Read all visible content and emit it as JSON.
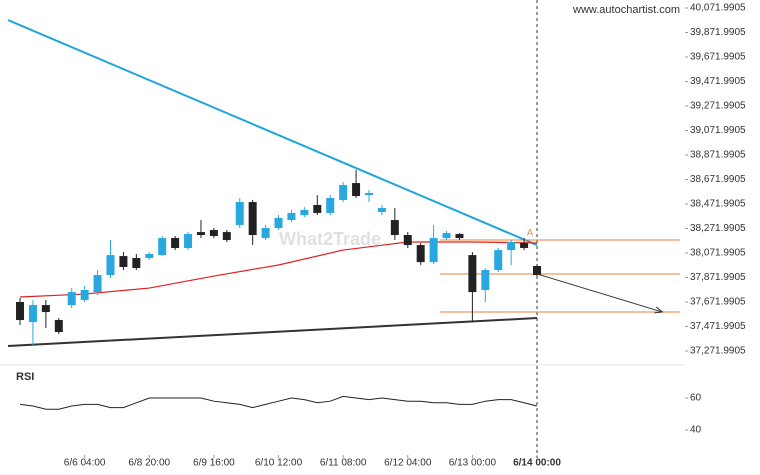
{
  "chart_data": {
    "type": "candlestick",
    "source": "www.autochartist.com",
    "watermark": "What2Trade",
    "open": [
      37672,
      37509,
      37647,
      37525,
      37647,
      37688,
      37753,
      37892,
      38047,
      38031,
      38031,
      38055,
      38194,
      38113,
      38243,
      38260,
      38243,
      38301,
      38488,
      38194,
      38276,
      38341,
      38382,
      38464,
      38399,
      38505,
      38643,
      38545,
      38407,
      38341,
      38219,
      38137,
      37998,
      38194,
      38227,
      38055,
      37770,
      37933,
      38096,
      38154,
      37966
    ],
    "high": [
      37705,
      37688,
      37688,
      37541,
      37786,
      37802,
      37933,
      38178,
      38080,
      38064,
      38080,
      38211,
      38211,
      38243,
      38341,
      38276,
      38260,
      38521,
      38505,
      38301,
      38382,
      38423,
      38447,
      38545,
      38545,
      38651,
      38750,
      38586,
      38464,
      38439,
      38243,
      38154,
      38301,
      38252,
      38235,
      38080,
      37949,
      38113,
      38178,
      38194,
      37982
    ],
    "low": [
      37484,
      37321,
      37460,
      37411,
      37623,
      37672,
      37729,
      37868,
      37933,
      37933,
      38015,
      38047,
      38096,
      38096,
      38194,
      38194,
      38162,
      38276,
      38137,
      38178,
      38260,
      38325,
      38366,
      38382,
      38382,
      38488,
      38521,
      38488,
      38382,
      38178,
      38113,
      37974,
      37982,
      38178,
      38178,
      37509,
      37672,
      37917,
      37974,
      38096,
      37884
    ],
    "close": [
      37525,
      37647,
      37590,
      37427,
      37753,
      37770,
      37892,
      38055,
      37958,
      37949,
      38064,
      38194,
      38113,
      38227,
      38219,
      38211,
      38178,
      38488,
      38219,
      38276,
      38358,
      38399,
      38423,
      38399,
      38521,
      38627,
      38537,
      38562,
      38439,
      38219,
      38137,
      37998,
      38194,
      38235,
      38194,
      37753,
      37933,
      38096,
      38162,
      38113,
      37892
    ],
    "up_color": "#29a8df",
    "down_color": "#222222",
    "moving_average": {
      "color": "#e02020",
      "x": [
        0,
        5,
        10,
        15,
        20,
        25,
        30,
        35,
        40
      ],
      "values": [
        37713,
        37737,
        37786,
        37884,
        37974,
        38096,
        38162,
        38162,
        38154
      ]
    },
    "resistance": {
      "color": "#1fa5dc",
      "x": [
        0,
        40
      ],
      "values": [
        39932,
        38137
      ]
    },
    "support": {
      "color": "#333333",
      "x": [
        0,
        40
      ],
      "values": [
        37318,
        37541
      ]
    },
    "levels": {
      "color": "#e8833a",
      "values": [
        38178,
        37901,
        37590
      ],
      "label": "A"
    },
    "forecast": {
      "x": [
        40,
        49.7
      ],
      "values": [
        37901,
        37590
      ]
    },
    "ylim": [
      37157.8,
      40137.3
    ],
    "yticks": [
      {
        "value": 40071.9905,
        "label": "40,071.9905"
      },
      {
        "value": 39871.9905,
        "label": "39,871.9905"
      },
      {
        "value": 39671.9905,
        "label": "39,671.9905"
      },
      {
        "value": 39471.9905,
        "label": "39,471.9905"
      },
      {
        "value": 39271.9905,
        "label": "39,271.9905"
      },
      {
        "value": 39071.9905,
        "label": "39,071.9905"
      },
      {
        "value": 38871.9905,
        "label": "38,871.9905"
      },
      {
        "value": 38671.9905,
        "label": "38,671.9905"
      },
      {
        "value": 38471.9905,
        "label": "38,471.9905"
      },
      {
        "value": 38271.9905,
        "label": "38,271.9905"
      },
      {
        "value": 38071.9905,
        "label": "38,071.9905"
      },
      {
        "value": 37871.9905,
        "label": "37,871.9905"
      },
      {
        "value": 37671.9905,
        "label": "37,671.9905"
      },
      {
        "value": 37471.9905,
        "label": "37,471.9905"
      },
      {
        "value": 37271.9905,
        "label": "37,271.9905"
      }
    ],
    "xticks": [
      {
        "value": 5,
        "label": "6/6 04:00"
      },
      {
        "value": 10,
        "label": "6/8 20:00"
      },
      {
        "value": 15,
        "label": "6/9 16:00"
      },
      {
        "value": 20,
        "label": "6/10 12:00"
      },
      {
        "value": 25,
        "label": "6/11 08:00"
      },
      {
        "value": 30,
        "label": "6/12 04:00"
      },
      {
        "value": 35,
        "label": "6/13 00:00"
      },
      {
        "value": 40,
        "label": "6/14 00:00"
      }
    ],
    "rsi": {
      "title": "RSI",
      "color": "#222222",
      "values": [
        56,
        55,
        53,
        53,
        55,
        56,
        56,
        54,
        54,
        57,
        60,
        60,
        60,
        60,
        60,
        58,
        57,
        56,
        54,
        56,
        58,
        60,
        59,
        57,
        58,
        61,
        60,
        59,
        60,
        59,
        58,
        58,
        57,
        57,
        56,
        56,
        58,
        59,
        59,
        57,
        55
      ],
      "ylim": [
        24.4,
        80.6
      ],
      "yticks": [
        60,
        40
      ]
    }
  }
}
